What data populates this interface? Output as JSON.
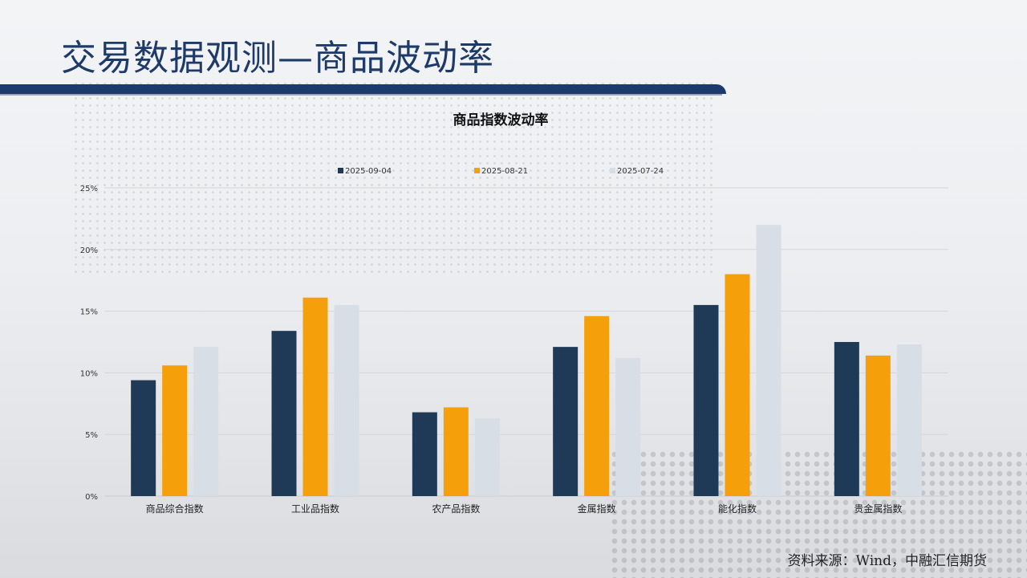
{
  "slide": {
    "title": "交易数据观测—商品波动率",
    "source": "资料来源：Wind，中融汇信期货"
  },
  "chart_data": {
    "type": "bar",
    "title": "商品指数波动率",
    "categories": [
      "商品综合指数",
      "工业品指数",
      "农产品指数",
      "金属指数",
      "能化指数",
      "贵金属指数"
    ],
    "series": [
      {
        "name": "2025-09-04",
        "color": "#1f3a57",
        "values": [
          9.4,
          13.4,
          6.8,
          12.1,
          15.5,
          12.5
        ]
      },
      {
        "name": "2025-08-21",
        "color": "#f5a00a",
        "values": [
          10.6,
          16.1,
          7.2,
          14.6,
          18.0,
          11.4
        ]
      },
      {
        "name": "2025-07-24",
        "color": "#d8dee6",
        "values": [
          12.1,
          15.5,
          6.3,
          11.2,
          22.0,
          12.3
        ]
      }
    ],
    "yticks": [
      "0%",
      "5%",
      "10%",
      "15%",
      "20%",
      "25%"
    ],
    "ylim": [
      0,
      25
    ],
    "grid": true,
    "legend": "top-center"
  }
}
